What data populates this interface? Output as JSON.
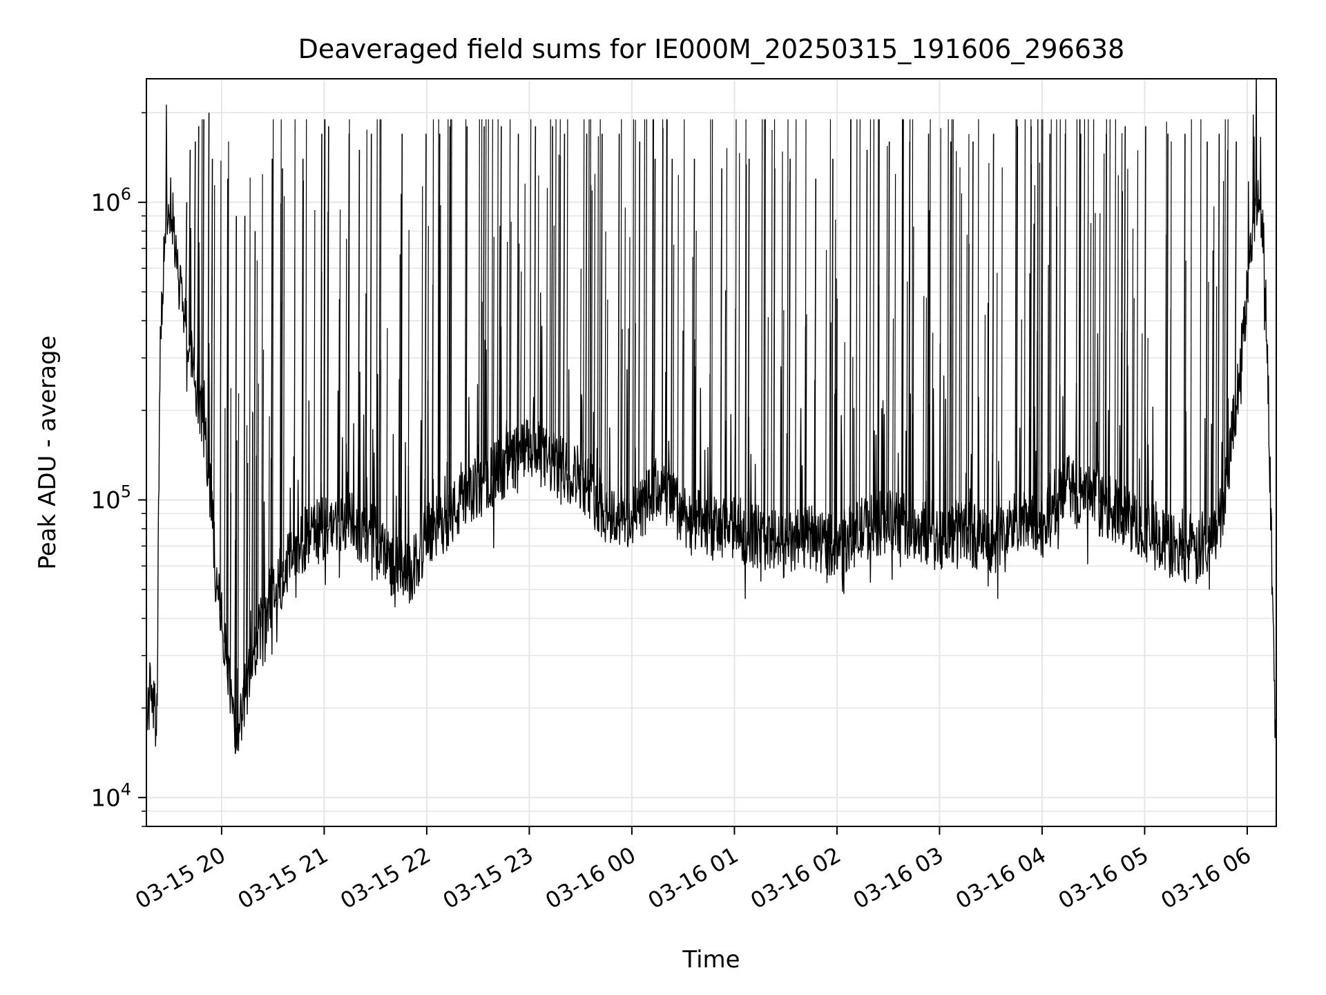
{
  "chart_data": {
    "type": "line",
    "title": "Deaveraged field sums for IE000M_20250315_191606_296638",
    "xlabel": "Time",
    "ylabel": "Peak ADU - average",
    "yscale": "log",
    "xlim": [
      "2025-03-15 19:16",
      "2025-03-16 06:17"
    ],
    "ylim": [
      8000,
      2600000
    ],
    "x_ticks": [
      {
        "t": "2025-03-15 20:00",
        "label": "03-15 20"
      },
      {
        "t": "2025-03-15 21:00",
        "label": "03-15 21"
      },
      {
        "t": "2025-03-15 22:00",
        "label": "03-15 22"
      },
      {
        "t": "2025-03-15 23:00",
        "label": "03-15 23"
      },
      {
        "t": "2025-03-16 00:00",
        "label": "03-16 00"
      },
      {
        "t": "2025-03-16 01:00",
        "label": "03-16 01"
      },
      {
        "t": "2025-03-16 02:00",
        "label": "03-16 02"
      },
      {
        "t": "2025-03-16 03:00",
        "label": "03-16 03"
      },
      {
        "t": "2025-03-16 04:00",
        "label": "03-16 04"
      },
      {
        "t": "2025-03-16 05:00",
        "label": "03-16 05"
      },
      {
        "t": "2025-03-16 06:00",
        "label": "03-16 06"
      }
    ],
    "y_ticks": [
      {
        "value": 10000,
        "base": "10",
        "exp": "4"
      },
      {
        "value": 100000,
        "base": "10",
        "exp": "5"
      },
      {
        "value": 1000000,
        "base": "10",
        "exp": "6"
      }
    ],
    "grid": true,
    "line_color": "#000000",
    "series": [
      {
        "x": [
          "2025-03-15 19:16",
          "2025-03-15 19:19",
          "2025-03-15 19:22",
          "2025-03-15 19:24",
          "2025-03-15 19:27",
          "2025-03-15 19:30",
          "2025-03-15 19:33",
          "2025-03-15 19:36",
          "2025-03-15 19:39",
          "2025-03-15 19:42",
          "2025-03-15 19:45",
          "2025-03-15 19:48",
          "2025-03-15 19:51",
          "2025-03-15 19:54",
          "2025-03-15 19:57",
          "2025-03-15 20:00",
          "2025-03-15 20:04",
          "2025-03-15 20:08",
          "2025-03-15 20:12",
          "2025-03-15 20:16",
          "2025-03-15 20:20",
          "2025-03-15 20:25",
          "2025-03-15 20:30",
          "2025-03-15 20:35",
          "2025-03-15 20:40",
          "2025-03-15 20:45",
          "2025-03-15 20:50",
          "2025-03-15 21:00",
          "2025-03-15 21:10",
          "2025-03-15 21:20",
          "2025-03-15 21:30",
          "2025-03-15 21:40",
          "2025-03-15 21:50",
          "2025-03-15 22:00",
          "2025-03-15 22:15",
          "2025-03-15 22:30",
          "2025-03-15 22:45",
          "2025-03-15 23:00",
          "2025-03-15 23:15",
          "2025-03-15 23:30",
          "2025-03-15 23:45",
          "2025-03-16 00:00",
          "2025-03-16 00:15",
          "2025-03-16 00:30",
          "2025-03-16 00:45",
          "2025-03-16 01:00",
          "2025-03-16 01:15",
          "2025-03-16 01:30",
          "2025-03-16 01:45",
          "2025-03-16 02:00",
          "2025-03-16 02:15",
          "2025-03-16 02:30",
          "2025-03-16 02:45",
          "2025-03-16 03:00",
          "2025-03-16 03:15",
          "2025-03-16 03:30",
          "2025-03-16 03:45",
          "2025-03-16 04:00",
          "2025-03-16 04:15",
          "2025-03-16 04:30",
          "2025-03-16 04:45",
          "2025-03-16 05:00",
          "2025-03-16 05:15",
          "2025-03-16 05:30",
          "2025-03-16 05:40",
          "2025-03-16 05:45",
          "2025-03-16 05:50",
          "2025-03-16 05:55",
          "2025-03-16 06:00",
          "2025-03-16 06:03",
          "2025-03-16 06:06",
          "2025-03-16 06:09",
          "2025-03-16 06:12",
          "2025-03-16 06:15",
          "2025-03-16 06:17"
        ],
        "y": [
          18000,
          25000,
          15000,
          300000,
          850000,
          1000000,
          700000,
          500000,
          400000,
          300000,
          260000,
          200000,
          150000,
          100000,
          50000,
          40000,
          25000,
          14000,
          20000,
          25000,
          32000,
          40000,
          50000,
          55000,
          65000,
          70000,
          75000,
          80000,
          85000,
          80000,
          75000,
          60000,
          55000,
          75000,
          90000,
          110000,
          130000,
          150000,
          130000,
          120000,
          90000,
          85000,
          110000,
          90000,
          80000,
          80000,
          75000,
          70000,
          75000,
          70000,
          80000,
          85000,
          80000,
          75000,
          80000,
          70000,
          85000,
          80000,
          110000,
          100000,
          90000,
          80000,
          70000,
          65000,
          75000,
          90000,
          150000,
          250000,
          500000,
          800000,
          1100000,
          900000,
          300000,
          40000,
          13000
        ]
      }
    ],
    "spikes": {
      "x": [
        "2025-03-15 19:39",
        "2025-03-15 19:41",
        "2025-03-15 19:44",
        "2025-03-15 19:46",
        "2025-03-15 19:49",
        "2025-03-15 19:52",
        "2025-03-15 19:54",
        "2025-03-15 20:03",
        "2025-03-15 20:08",
        "2025-03-15 20:13",
        "2025-03-15 20:19",
        "2025-03-15 20:29",
        "2025-03-15 20:35",
        "2025-03-15 20:47",
        "2025-03-15 20:58",
        "2025-03-15 21:02",
        "2025-03-15 21:14",
        "2025-03-15 21:20",
        "2025-03-15 21:27",
        "2025-03-15 21:45",
        "2025-03-15 21:59",
        "2025-03-15 22:07",
        "2025-03-15 22:13",
        "2025-03-15 22:23",
        "2025-03-15 22:33",
        "2025-03-15 22:43",
        "2025-03-15 22:53",
        "2025-03-15 23:03",
        "2025-03-15 23:13",
        "2025-03-15 23:20",
        "2025-03-15 23:33",
        "2025-03-15 23:42",
        "2025-03-15 23:52",
        "2025-03-16 00:04",
        "2025-03-16 00:13",
        "2025-03-16 00:23",
        "2025-03-16 00:36",
        "2025-03-16 00:52",
        "2025-03-16 01:08",
        "2025-03-16 01:23",
        "2025-03-16 01:32",
        "2025-03-16 01:47",
        "2025-03-16 01:57",
        "2025-03-16 02:17",
        "2025-03-16 02:30",
        "2025-03-16 02:42",
        "2025-03-16 02:53",
        "2025-03-16 03:06",
        "2025-03-16 03:19",
        "2025-03-16 03:31",
        "2025-03-16 03:45",
        "2025-03-16 03:53",
        "2025-03-16 04:04",
        "2025-03-16 04:13",
        "2025-03-16 04:22",
        "2025-03-16 04:37",
        "2025-03-16 04:48",
        "2025-03-16 05:00",
        "2025-03-16 05:13",
        "2025-03-16 05:23",
        "2025-03-16 05:36",
        "2025-03-16 05:43",
        "2025-03-16 05:48",
        "2025-03-16 05:53"
      ],
      "y": [
        1000000,
        1500000,
        1600000,
        1800000,
        1900000,
        2000000,
        1400000,
        1200000,
        900000,
        900000,
        800000,
        1400000,
        1300000,
        1400000,
        1700000,
        1800000,
        1700000,
        1500000,
        1700000,
        1700000,
        1700000,
        1700000,
        1800000,
        1800000,
        1800000,
        1800000,
        1700000,
        1800000,
        1800000,
        1700000,
        1700000,
        1700000,
        1700000,
        1600000,
        1400000,
        1400000,
        1400000,
        1300000,
        1400000,
        1300000,
        1400000,
        1200000,
        1400000,
        1500000,
        1600000,
        1600000,
        1700000,
        1600000,
        1600000,
        1700000,
        1800000,
        1800000,
        1700000,
        1700000,
        1700000,
        1700000,
        1800000,
        1800000,
        1700000,
        1700000,
        1600000,
        1700000,
        1500000,
        1600000
      ]
    }
  }
}
